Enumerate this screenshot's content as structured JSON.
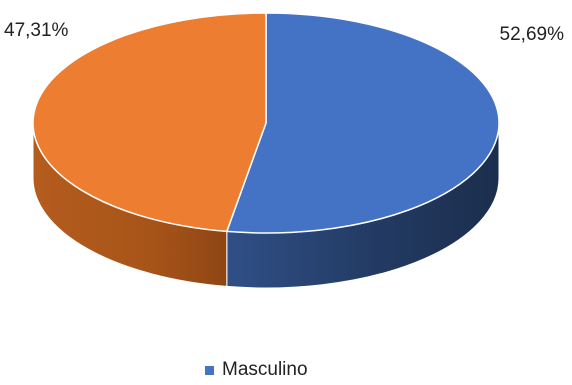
{
  "chart_data": {
    "type": "pie",
    "style": "3d",
    "slices": [
      {
        "name": "Masculino",
        "value": 52.69,
        "label": "52,69%",
        "color": "#4472C4"
      },
      {
        "value": 47.31,
        "label": "47,31%",
        "color": "#ED7D31"
      }
    ],
    "legend": {
      "placement": "bottom",
      "entries": [
        {
          "label": "Masculino",
          "color": "#4472C4"
        }
      ]
    }
  }
}
